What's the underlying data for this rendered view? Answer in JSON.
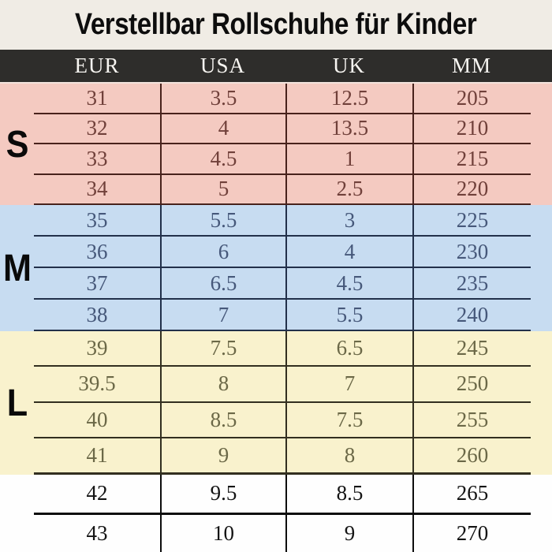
{
  "title": "Verstellbar Rollschuhe für Kinder",
  "header": {
    "columns": [
      "EUR",
      "USA",
      "UK",
      "MM"
    ],
    "bg": "#2e2d2b",
    "text_color": "#f7f5f1"
  },
  "colors": {
    "page_bg": "#f0ece5",
    "title_color": "#0d0d0d"
  },
  "sections": [
    {
      "label": "S",
      "bg": "#f4cac1",
      "text_color": "#70403a",
      "line_color": "#48221c",
      "rows": [
        [
          "31",
          "3.5",
          "12.5",
          "205"
        ],
        [
          "32",
          "4",
          "13.5",
          "210"
        ],
        [
          "33",
          "4.5",
          "1",
          "215"
        ],
        [
          "34",
          "5",
          "2.5",
          "220"
        ]
      ]
    },
    {
      "label": "M",
      "bg": "#c7dcf1",
      "text_color": "#46587a",
      "line_color": "#22304a",
      "rows": [
        [
          "35",
          "5.5",
          "3",
          "225"
        ],
        [
          "36",
          "6",
          "4",
          "230"
        ],
        [
          "37",
          "6.5",
          "4.5",
          "235"
        ],
        [
          "38",
          "7",
          "5.5",
          "240"
        ]
      ]
    },
    {
      "label": "L",
      "bg": "#f9f2cd",
      "text_color": "#6b6847",
      "line_color": "#322f20",
      "rows": [
        [
          "39",
          "7.5",
          "6.5",
          "245"
        ],
        [
          "39.5",
          "8",
          "7",
          "250"
        ],
        [
          "40",
          "8.5",
          "7.5",
          "255"
        ],
        [
          "41",
          "9",
          "8",
          "260"
        ]
      ]
    },
    {
      "label": "",
      "bg": "#fefefe",
      "text_color": "#141414",
      "line_color": "#0d0d0d",
      "rows": [
        [
          "42",
          "9.5",
          "8.5",
          "265"
        ],
        [
          "43",
          "10",
          "9",
          "270"
        ]
      ]
    }
  ],
  "chart_data": {
    "type": "table",
    "title": "Verstellbar Rollschuhe für Kinder",
    "columns": [
      "EUR",
      "USA",
      "UK",
      "MM"
    ],
    "row_groups": [
      {
        "group": "S",
        "rows": [
          [
            31,
            3.5,
            12.5,
            205
          ],
          [
            32,
            4,
            13.5,
            210
          ],
          [
            33,
            4.5,
            1,
            215
          ],
          [
            34,
            5,
            2.5,
            220
          ]
        ]
      },
      {
        "group": "M",
        "rows": [
          [
            35,
            5.5,
            3,
            225
          ],
          [
            36,
            6,
            4,
            230
          ],
          [
            37,
            6.5,
            4.5,
            235
          ],
          [
            38,
            7,
            5.5,
            240
          ]
        ]
      },
      {
        "group": "L",
        "rows": [
          [
            39,
            7.5,
            6.5,
            245
          ],
          [
            39.5,
            8,
            7,
            250
          ],
          [
            40,
            8.5,
            7.5,
            255
          ],
          [
            41,
            9,
            8,
            260
          ]
        ]
      },
      {
        "group": "",
        "rows": [
          [
            42,
            9.5,
            8.5,
            265
          ],
          [
            43,
            10,
            9,
            270
          ]
        ]
      }
    ]
  }
}
